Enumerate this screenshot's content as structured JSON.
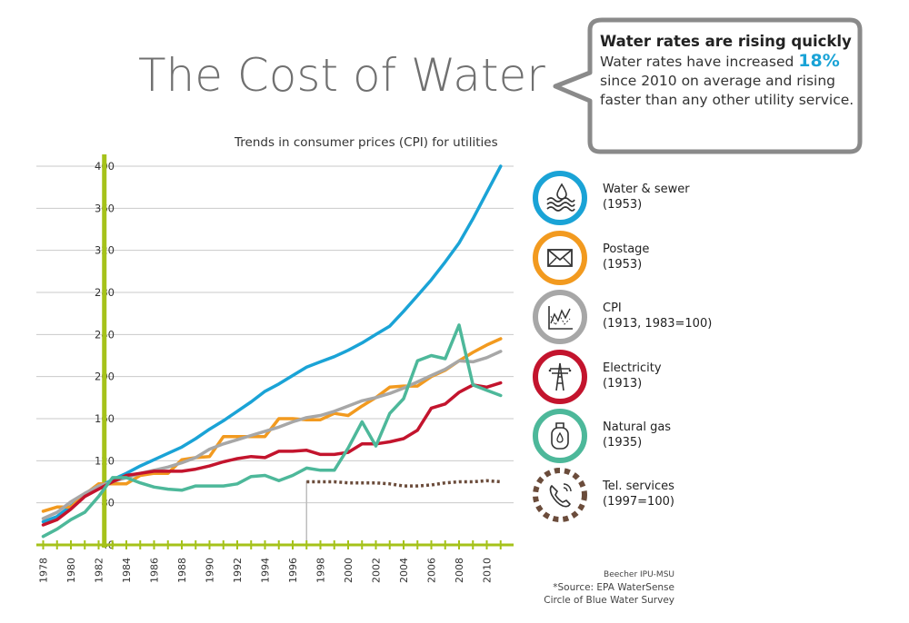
{
  "title": "The Cost of Water",
  "subtitle": "Trends in consumer prices (CPI) for utilities",
  "callout": {
    "heading": "Water rates are rising quickly",
    "line1_pre": "Water rates have increased ",
    "highlight": "18%",
    "line2": "since 2010 on average and rising",
    "line3": "faster than any other utility service."
  },
  "legend": [
    {
      "name": "Water & sewer",
      "note": "(1953)",
      "color": "#1aa3d6",
      "icon": "water-waves-icon"
    },
    {
      "name": "Postage",
      "note": "(1953)",
      "color": "#f29a1f",
      "icon": "envelope-icon"
    },
    {
      "name": "CPI",
      "note": "(1913, 1983=100)",
      "color": "#a7a7a7",
      "icon": "chart-icon"
    },
    {
      "name": "Electricity",
      "note": "(1913)",
      "color": "#c3142d",
      "icon": "power-tower-icon"
    },
    {
      "name": "Natural gas",
      "note": "(1935)",
      "color": "#4db89a",
      "icon": "gas-tank-icon"
    },
    {
      "name": "Tel. services",
      "note": "(1997=100)",
      "color": "#6b4c3b",
      "icon": "phone-icon"
    }
  ],
  "sources": {
    "line1": "Beecher IPU-MSU",
    "line2": "*Source: EPA WaterSense",
    "line3": "Circle of Blue Water Survey"
  },
  "chart_data": {
    "type": "line",
    "x": [
      1978,
      1979,
      1980,
      1981,
      1982,
      1983,
      1984,
      1985,
      1986,
      1987,
      1988,
      1989,
      1990,
      1991,
      1992,
      1993,
      1994,
      1995,
      1996,
      1997,
      1998,
      1999,
      2000,
      2001,
      2002,
      2003,
      2004,
      2005,
      2006,
      2007,
      2008,
      2009,
      2010,
      2011
    ],
    "xticks": [
      1978,
      1980,
      1982,
      1984,
      1986,
      1988,
      1990,
      1992,
      1994,
      1996,
      1998,
      2000,
      2002,
      2004,
      2006,
      2008,
      2010
    ],
    "yticks": [
      40,
      80,
      120,
      160,
      200,
      240,
      280,
      320,
      360,
      400
    ],
    "ylim": [
      40,
      400
    ],
    "xlim": [
      1978,
      2011.5
    ],
    "grid": true,
    "highlight_x": 1983,
    "series": [
      {
        "name": "Water & sewer",
        "color": "#1aa3d6",
        "values": [
          62,
          67,
          77,
          87,
          95,
          102,
          108,
          115,
          121,
          127,
          133,
          141,
          150,
          158,
          167,
          176,
          186,
          193,
          201,
          209,
          214,
          219,
          225,
          232,
          240,
          248,
          262,
          277,
          292,
          309,
          327,
          350,
          375,
          400
        ]
      },
      {
        "name": "Postage",
        "color": "#f29a1f",
        "values": [
          72,
          76,
          76,
          88,
          98,
          98,
          98,
          106,
          108,
          108,
          121,
          123,
          124,
          143,
          143,
          143,
          143,
          160,
          160,
          159,
          159,
          165,
          163,
          172,
          180,
          190,
          191,
          191,
          200,
          206,
          215,
          223,
          230,
          236
        ]
      },
      {
        "name": "CPI",
        "color": "#a7a7a7",
        "values": [
          65,
          71,
          81,
          89,
          96,
          100,
          104,
          108,
          111,
          114,
          118,
          123,
          131,
          136,
          140,
          144,
          148,
          152,
          157,
          161,
          163,
          167,
          172,
          177,
          180,
          184,
          189,
          195,
          201,
          207,
          215,
          214,
          218,
          224
        ]
      },
      {
        "name": "Electricity",
        "color": "#c3142d",
        "values": [
          59,
          64,
          74,
          86,
          93,
          100,
          106,
          108,
          110,
          110,
          110,
          112,
          115,
          119,
          122,
          124,
          123,
          129,
          129,
          130,
          126,
          126,
          128,
          136,
          136,
          138,
          141,
          149,
          170,
          174,
          185,
          192,
          190,
          194
        ]
      },
      {
        "name": "Natural gas",
        "color": "#4db89a",
        "values": [
          48,
          55,
          64,
          71,
          86,
          104,
          104,
          99,
          95,
          93,
          92,
          96,
          96,
          96,
          98,
          105,
          106,
          101,
          106,
          113,
          111,
          111,
          132,
          157,
          134,
          165,
          179,
          215,
          220,
          217,
          249,
          192,
          187,
          182
        ]
      },
      {
        "name": "Tel. services",
        "color": "#6b4c3b",
        "dashed": true,
        "start": 1997,
        "values": [
          null,
          null,
          null,
          null,
          null,
          null,
          null,
          null,
          null,
          null,
          null,
          null,
          null,
          null,
          null,
          null,
          null,
          null,
          null,
          100,
          100,
          100,
          99,
          99,
          99,
          98,
          96,
          96,
          97,
          99,
          100,
          100,
          101,
          100
        ]
      }
    ]
  }
}
